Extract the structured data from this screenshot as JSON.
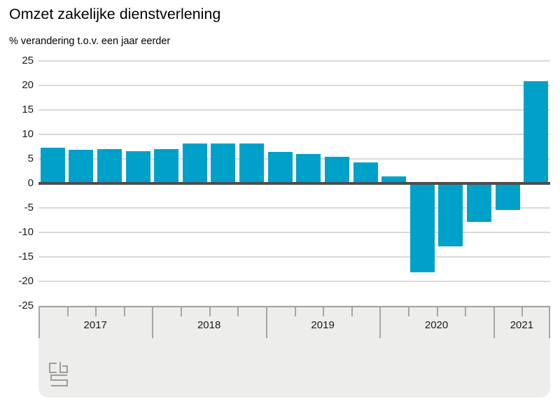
{
  "header": {
    "title": "Omzet zakelijke dienstverlening",
    "subtitle": "% verandering t.o.v. een jaar eerder"
  },
  "chart_data": {
    "type": "bar",
    "title": "Omzet zakelijke dienstverlening",
    "ylabel": "% verandering t.o.v. een jaar eerder",
    "ylim": [
      -25,
      25
    ],
    "ytick_step": 5,
    "yticks": [
      25,
      20,
      15,
      10,
      5,
      0,
      -5,
      -10,
      -15,
      -20,
      -25
    ],
    "grid": true,
    "legend": "none",
    "categories": [
      "2017 Q1",
      "2017 Q2",
      "2017 Q3",
      "2017 Q4",
      "2018 Q1",
      "2018 Q2",
      "2018 Q3",
      "2018 Q4",
      "2019 Q1",
      "2019 Q2",
      "2019 Q3",
      "2019 Q4",
      "2020 Q1",
      "2020 Q2",
      "2020 Q3",
      "2020 Q4",
      "2021 Q1",
      "2021 Q2"
    ],
    "values": [
      7.3,
      6.8,
      7.0,
      6.6,
      7.0,
      8.2,
      8.1,
      8.2,
      6.4,
      6.0,
      5.5,
      4.3,
      1.4,
      -18.2,
      -12.9,
      -7.8,
      -5.4,
      20.8
    ],
    "year_groups": [
      {
        "label": "2017",
        "quarters": 4
      },
      {
        "label": "2018",
        "quarters": 4
      },
      {
        "label": "2019",
        "quarters": 4
      },
      {
        "label": "2020",
        "quarters": 4
      },
      {
        "label": "2021",
        "quarters": 2
      }
    ],
    "colors": {
      "bar": "#00a1c9",
      "zero_line": "#4d4d4f",
      "gridline": "#d9d9d9",
      "band_background": "#ededec",
      "band_border": "#9e9e9e",
      "tick": "#a6a6a6",
      "label_text": "#1a1a1a",
      "logo": "#9c9c9c"
    }
  },
  "footer": {
    "logo": "cbs-logo"
  }
}
